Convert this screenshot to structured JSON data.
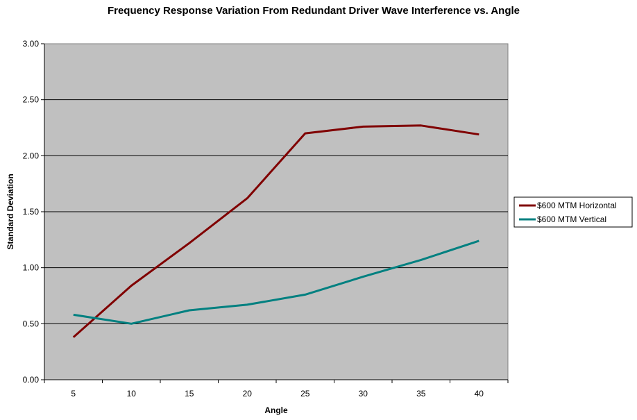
{
  "chart_data": {
    "type": "line",
    "title": "Frequency Response Variation From Redundant Driver Wave Interference vs. Angle",
    "xlabel": "Angle",
    "ylabel": "Standard Deviation",
    "categories": [
      "5",
      "10",
      "15",
      "20",
      "25",
      "30",
      "35",
      "40"
    ],
    "ylim": [
      0,
      3
    ],
    "yticks": [
      "0.00",
      "0.50",
      "1.00",
      "1.50",
      "2.00",
      "2.50",
      "3.00"
    ],
    "yticks_values": [
      0,
      0.5,
      1.0,
      1.5,
      2.0,
      2.5,
      3.0
    ],
    "grid": true,
    "legend_position": "right",
    "plot_background": "#c0c0c0",
    "series": [
      {
        "name": "$600 MTM Horizontal",
        "color": "#800000",
        "values": [
          0.38,
          0.84,
          1.22,
          1.62,
          2.2,
          2.26,
          2.27,
          2.19
        ]
      },
      {
        "name": "$600 MTM Vertical",
        "color": "#008080",
        "values": [
          0.58,
          0.5,
          0.62,
          0.67,
          0.76,
          0.92,
          1.07,
          1.24
        ]
      }
    ]
  }
}
